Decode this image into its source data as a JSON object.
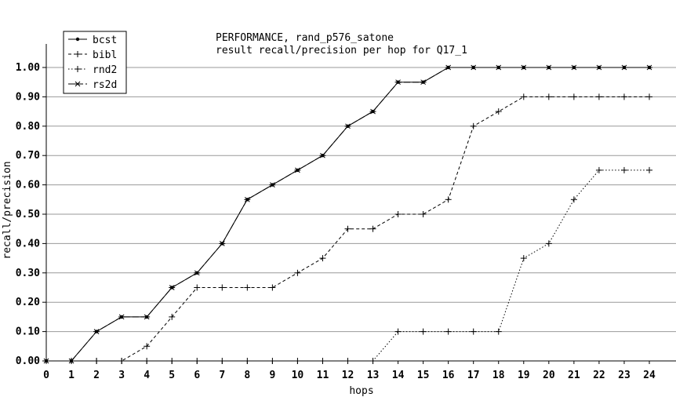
{
  "chart_data": {
    "type": "line",
    "title": "PERFORMANCE, rand_p576_satone",
    "subtitle": "result recall/precision per hop for Q17_1",
    "xlabel": "hops",
    "ylabel": "recall/precision",
    "xlim": [
      0,
      24
    ],
    "ylim": [
      0,
      1.0
    ],
    "x_ticks": [
      "0",
      "1",
      "2",
      "3",
      "4",
      "5",
      "6",
      "7",
      "8",
      "9",
      "10",
      "11",
      "12",
      "13",
      "14",
      "15",
      "16",
      "17",
      "18",
      "19",
      "20",
      "21",
      "22",
      "23",
      "24"
    ],
    "y_ticks": [
      "0.00",
      "0.10",
      "0.20",
      "0.30",
      "0.40",
      "0.50",
      "0.60",
      "0.70",
      "0.80",
      "0.90",
      "1.00"
    ],
    "grid": "horizontal",
    "legend_position": "top-left",
    "x": [
      0,
      1,
      2,
      3,
      4,
      5,
      6,
      7,
      8,
      9,
      10,
      11,
      12,
      13,
      14,
      15,
      16,
      17,
      18,
      19,
      20,
      21,
      22,
      23,
      24
    ],
    "series": [
      {
        "name": "bcst",
        "marker": "dot",
        "dash": "solid",
        "values": [
          0.0,
          0.0,
          0.1,
          0.15,
          0.15,
          0.25,
          0.3,
          0.4,
          0.55,
          0.6,
          0.65,
          0.7,
          0.8,
          0.85,
          0.95,
          0.95,
          1.0,
          1.0,
          1.0,
          1.0,
          1.0,
          1.0,
          1.0,
          1.0,
          1.0
        ]
      },
      {
        "name": "bibl",
        "marker": "plus",
        "dash": "dashed",
        "values": [
          0.0,
          0.0,
          0.0,
          0.0,
          0.05,
          0.15,
          0.25,
          0.25,
          0.25,
          0.25,
          0.3,
          0.35,
          0.45,
          0.45,
          0.5,
          0.5,
          0.55,
          0.8,
          0.85,
          0.9,
          0.9,
          0.9,
          0.9,
          0.9,
          0.9
        ]
      },
      {
        "name": "rnd2",
        "marker": "plus",
        "dash": "dotted",
        "values": [
          0.0,
          0.0,
          0.0,
          0.0,
          0.0,
          0.0,
          0.0,
          0.0,
          0.0,
          0.0,
          0.0,
          0.0,
          0.0,
          0.0,
          0.1,
          0.1,
          0.1,
          0.1,
          0.1,
          0.35,
          0.4,
          0.55,
          0.65,
          0.65,
          0.65
        ]
      },
      {
        "name": "rs2d",
        "marker": "star",
        "dash": "longdash",
        "values": [
          0.0,
          0.0,
          0.1,
          0.15,
          0.15,
          0.25,
          0.3,
          0.4,
          0.55,
          0.6,
          0.65,
          0.7,
          0.8,
          0.85,
          0.95,
          0.95,
          1.0,
          1.0,
          1.0,
          1.0,
          1.0,
          1.0,
          1.0,
          1.0,
          1.0
        ]
      }
    ]
  }
}
